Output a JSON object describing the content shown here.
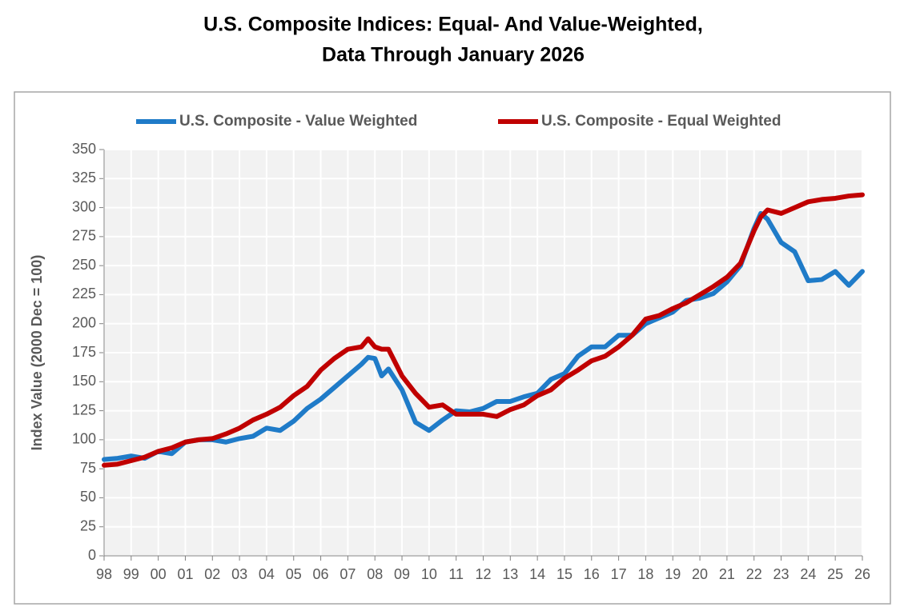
{
  "chart_data": {
    "type": "line",
    "title": [
      "U.S. Composite Indices: Equal- And Value-Weighted,",
      "Data Through January 2026"
    ],
    "y_label": "Index Value (2000 Dec = 100)",
    "x": [
      1998,
      1998.5,
      1999,
      1999.5,
      2000,
      2000.5,
      2001,
      2001.5,
      2002,
      2002.5,
      2003,
      2003.5,
      2004,
      2004.5,
      2005,
      2005.5,
      2006,
      2006.5,
      2007,
      2007.5,
      2007.75,
      2008,
      2008.25,
      2008.5,
      2009,
      2009.5,
      2010,
      2010.5,
      2011,
      2011.5,
      2012,
      2012.5,
      2013,
      2013.5,
      2014,
      2014.5,
      2015,
      2015.5,
      2016,
      2016.5,
      2017,
      2017.5,
      2018,
      2018.5,
      2019,
      2019.5,
      2020,
      2020.5,
      2021,
      2021.5,
      2022,
      2022.25,
      2022.5,
      2023,
      2023.5,
      2024,
      2024.5,
      2025,
      2025.5,
      2026
    ],
    "series": [
      {
        "name": "U.S. Composite - Value Weighted",
        "color": "#1f7bc8",
        "values": [
          83,
          84,
          86,
          84,
          90,
          88,
          98,
          100,
          100,
          98,
          101,
          103,
          110,
          108,
          116,
          127,
          135,
          145,
          155,
          165,
          171,
          170,
          155,
          161,
          143,
          115,
          108,
          117,
          125,
          124,
          127,
          133,
          133,
          137,
          140,
          152,
          157,
          172,
          180,
          180,
          190,
          190,
          200,
          205,
          210,
          220,
          222,
          226,
          236,
          250,
          282,
          295,
          290,
          270,
          262,
          237,
          238,
          245,
          233,
          245
        ]
      },
      {
        "name": "U.S. Composite - Equal Weighted",
        "color": "#c00000",
        "values": [
          78,
          79,
          82,
          85,
          90,
          93,
          98,
          100,
          101,
          105,
          110,
          117,
          122,
          128,
          138,
          146,
          160,
          170,
          178,
          180,
          187,
          180,
          178,
          178,
          155,
          140,
          128,
          130,
          122,
          122,
          122,
          120,
          126,
          130,
          138,
          143,
          153,
          160,
          168,
          172,
          180,
          190,
          204,
          207,
          213,
          218,
          225,
          232,
          240,
          252,
          280,
          292,
          298,
          295,
          300,
          305,
          307,
          308,
          310,
          311
        ]
      }
    ],
    "xlim": [
      1998,
      2026
    ],
    "xticks": [
      {
        "value": 1998,
        "label": "98"
      },
      {
        "value": 1999,
        "label": "99"
      },
      {
        "value": 2000,
        "label": "00"
      },
      {
        "value": 2001,
        "label": "01"
      },
      {
        "value": 2002,
        "label": "02"
      },
      {
        "value": 2003,
        "label": "03"
      },
      {
        "value": 2004,
        "label": "04"
      },
      {
        "value": 2005,
        "label": "05"
      },
      {
        "value": 2006,
        "label": "06"
      },
      {
        "value": 2007,
        "label": "07"
      },
      {
        "value": 2008,
        "label": "08"
      },
      {
        "value": 2009,
        "label": "09"
      },
      {
        "value": 2010,
        "label": "10"
      },
      {
        "value": 2011,
        "label": "11"
      },
      {
        "value": 2012,
        "label": "12"
      },
      {
        "value": 2013,
        "label": "13"
      },
      {
        "value": 2014,
        "label": "14"
      },
      {
        "value": 2015,
        "label": "15"
      },
      {
        "value": 2016,
        "label": "16"
      },
      {
        "value": 2017,
        "label": "17"
      },
      {
        "value": 2018,
        "label": "18"
      },
      {
        "value": 2019,
        "label": "19"
      },
      {
        "value": 2020,
        "label": "20"
      },
      {
        "value": 2021,
        "label": "21"
      },
      {
        "value": 2022,
        "label": "22"
      },
      {
        "value": 2023,
        "label": "23"
      },
      {
        "value": 2024,
        "label": "24"
      },
      {
        "value": 2025,
        "label": "25"
      },
      {
        "value": 2026,
        "label": "26"
      }
    ],
    "ylim": [
      0,
      350
    ],
    "yticks": [
      0,
      25,
      50,
      75,
      100,
      125,
      150,
      175,
      200,
      225,
      250,
      275,
      300,
      325,
      350
    ],
    "grid": true,
    "legend": "top"
  }
}
